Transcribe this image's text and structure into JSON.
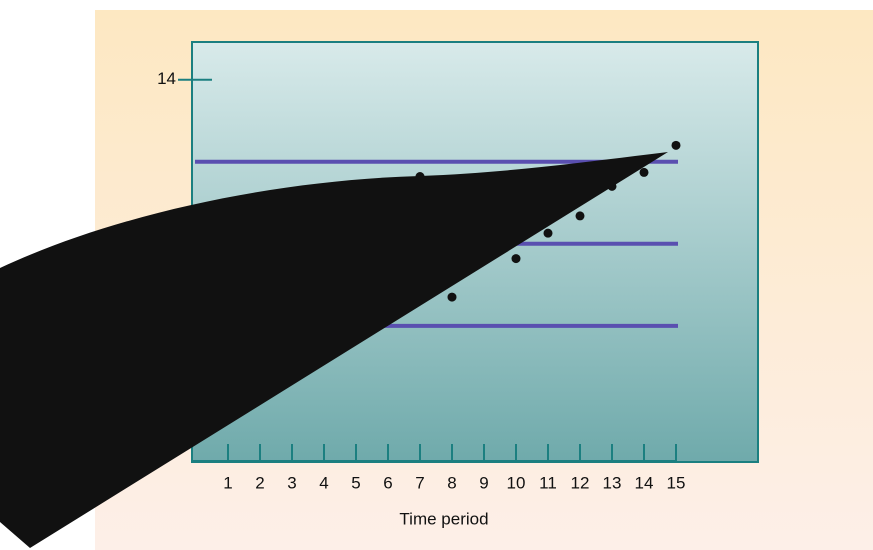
{
  "chart_data": {
    "type": "scatter",
    "x_label": "Time period",
    "categories": [
      "1",
      "2",
      "3",
      "4",
      "5",
      "6",
      "7",
      "8",
      "9",
      "10",
      "11",
      "12",
      "13",
      "14",
      "15"
    ],
    "series": [
      {
        "color": "#111111",
        "values": [
          null,
          null,
          null,
          null,
          null,
          null,
          12.82,
          11.35,
          null,
          11.82,
          12.13,
          12.34,
          12.7,
          12.87,
          13.2
        ]
      }
    ],
    "reference_lines": {
      "color": "#5a4fb0",
      "values": [
        13,
        12,
        11
      ]
    },
    "ylim": [
      9.34,
      14.46
    ],
    "yticks": [
      14
    ]
  }
}
